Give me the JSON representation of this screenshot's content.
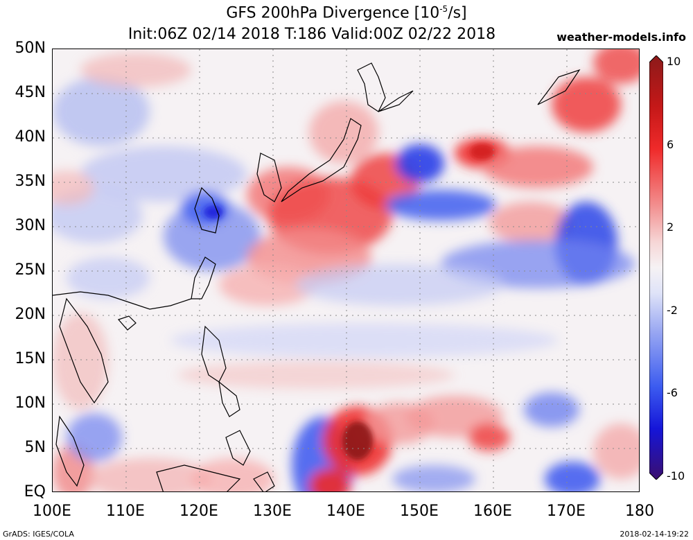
{
  "header": {
    "title_prefix": "GFS 200hPa Divergence [10",
    "title_exp": "-5",
    "title_suffix": "/s]",
    "subtitle": "Init:06Z 02/14 2018 T:186 Valid:00Z 02/22 2018",
    "site": "weather-models.info"
  },
  "axes": {
    "y_labels": [
      "50N",
      "45N",
      "40N",
      "35N",
      "30N",
      "25N",
      "20N",
      "15N",
      "10N",
      "5N",
      "EQ"
    ],
    "x_labels": [
      "100E",
      "110E",
      "120E",
      "130E",
      "140E",
      "150E",
      "160E",
      "170E",
      "180"
    ]
  },
  "colorbar": {
    "labels": [
      "10",
      "6",
      "2",
      "-2",
      "-6",
      "-10"
    ],
    "colors": [
      "#3b0f6e",
      "#1515d8",
      "#3c5cf0",
      "#9aa8f2",
      "#dfe3f8",
      "#f6f2f4",
      "#f6d6d6",
      "#f28c8c",
      "#ef2a2a",
      "#c41818",
      "#8c1a1a"
    ]
  },
  "map": {
    "lon_range": [
      100,
      180
    ],
    "lat_range": [
      0,
      50
    ],
    "grid": true,
    "features": [
      {
        "name": "japan-ridge-divergence",
        "sign": "positive"
      },
      {
        "name": "central-pacific-convergence",
        "sign": "negative"
      },
      {
        "name": "equatorial-divergence-140e",
        "sign": "positive"
      }
    ]
  },
  "footer": {
    "left": "GrADS: IGES/COLA",
    "right": "2018-02-14-19:22"
  }
}
